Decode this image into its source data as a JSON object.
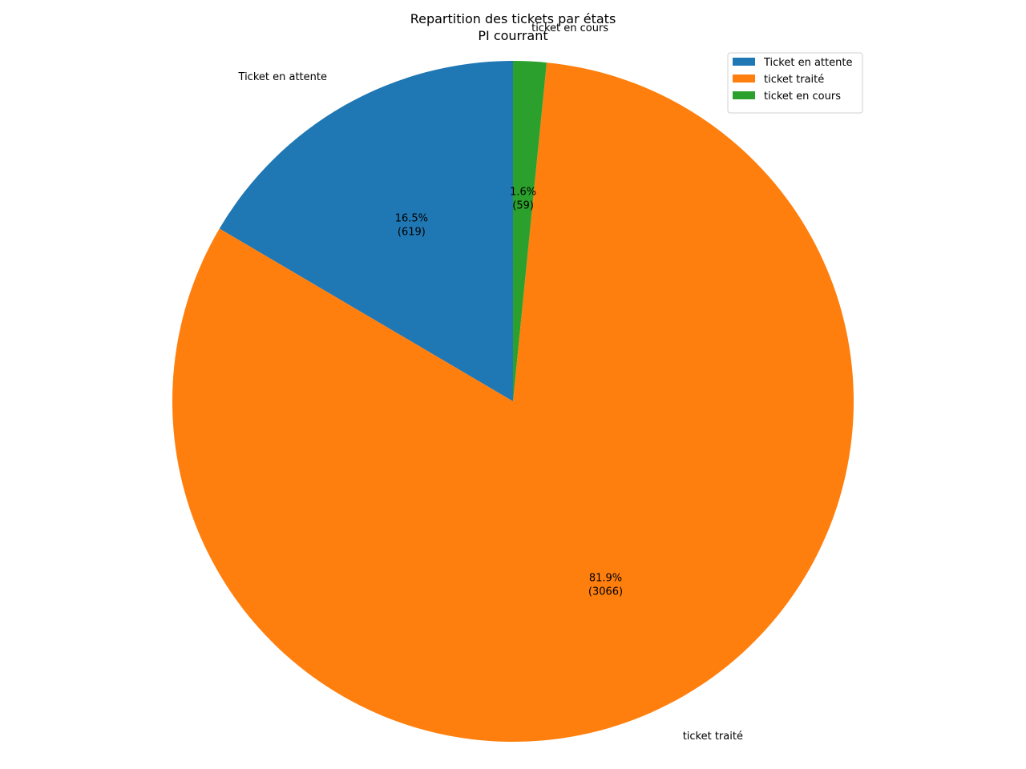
{
  "chart_data": {
    "type": "pie",
    "title": "Repartition des tickets par états",
    "subtitle": "PI courrant",
    "start_angle_deg": 90,
    "direction": "counterclockwise",
    "legend_position": "top-right",
    "slices": [
      {
        "label": "Ticket en attente",
        "value": 619,
        "percent": 16.5,
        "pct_text": "16.5%",
        "count_text": "(619)",
        "color": "#1f77b4"
      },
      {
        "label": "ticket traité",
        "value": 3066,
        "percent": 81.9,
        "pct_text": "81.9%",
        "count_text": "(3066)",
        "color": "#ff7f0e"
      },
      {
        "label": "ticket en cours",
        "value": 59,
        "percent": 1.6,
        "pct_text": "1.6%",
        "count_text": "(59)",
        "color": "#2ca02c"
      }
    ]
  }
}
